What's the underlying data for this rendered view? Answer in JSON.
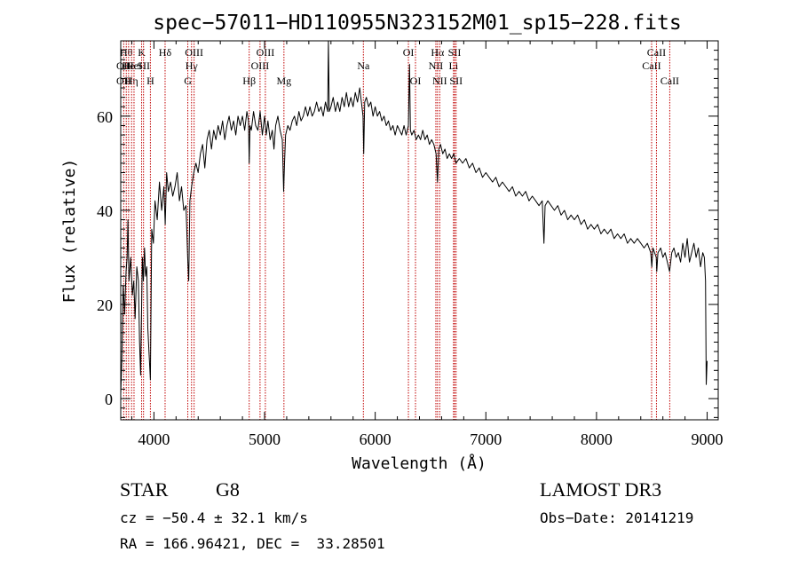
{
  "chart_data": {
    "type": "line",
    "title": "spec−57011−HD110955N323152M01_sp15−228.fits",
    "xlabel": "Wavelength (Å)",
    "ylabel": "Flux (relative)",
    "xlim": [
      3700,
      9100
    ],
    "ylim": [
      -4.5,
      76
    ],
    "x_ticks": [
      4000,
      5000,
      6000,
      7000,
      8000,
      9000
    ],
    "y_ticks": [
      0,
      20,
      40,
      60
    ],
    "grid": false,
    "line_color": "#000000",
    "marker_color": "#c00000",
    "series": [
      {
        "name": "flux",
        "points": [
          [
            3700,
            1
          ],
          [
            3710,
            8
          ],
          [
            3722,
            24
          ],
          [
            3735,
            18
          ],
          [
            3748,
            27
          ],
          [
            3758,
            30
          ],
          [
            3765,
            38
          ],
          [
            3775,
            25
          ],
          [
            3790,
            30
          ],
          [
            3805,
            22
          ],
          [
            3818,
            25
          ],
          [
            3830,
            17
          ],
          [
            3845,
            28
          ],
          [
            3860,
            25
          ],
          [
            3870,
            12
          ],
          [
            3880,
            5
          ],
          [
            3888,
            18
          ],
          [
            3896,
            30
          ],
          [
            3905,
            25
          ],
          [
            3915,
            32
          ],
          [
            3925,
            26
          ],
          [
            3935,
            28
          ],
          [
            3945,
            15
          ],
          [
            3955,
            10
          ],
          [
            3968,
            4
          ],
          [
            3980,
            36
          ],
          [
            3995,
            33
          ],
          [
            4010,
            42
          ],
          [
            4030,
            38
          ],
          [
            4050,
            46
          ],
          [
            4070,
            40
          ],
          [
            4090,
            45
          ],
          [
            4102,
            37
          ],
          [
            4115,
            48
          ],
          [
            4130,
            44
          ],
          [
            4150,
            46
          ],
          [
            4170,
            43
          ],
          [
            4190,
            45
          ],
          [
            4210,
            48
          ],
          [
            4230,
            42
          ],
          [
            4250,
            45
          ],
          [
            4270,
            40
          ],
          [
            4290,
            41
          ],
          [
            4305,
            30
          ],
          [
            4315,
            25
          ],
          [
            4325,
            42
          ],
          [
            4340,
            45
          ],
          [
            4360,
            48
          ],
          [
            4380,
            50
          ],
          [
            4400,
            48
          ],
          [
            4420,
            52
          ],
          [
            4440,
            54
          ],
          [
            4460,
            49
          ],
          [
            4480,
            55
          ],
          [
            4500,
            57
          ],
          [
            4520,
            53
          ],
          [
            4540,
            57
          ],
          [
            4560,
            55
          ],
          [
            4580,
            58
          ],
          [
            4600,
            56
          ],
          [
            4620,
            59
          ],
          [
            4640,
            55
          ],
          [
            4660,
            58
          ],
          [
            4680,
            60
          ],
          [
            4700,
            57
          ],
          [
            4720,
            59
          ],
          [
            4740,
            56
          ],
          [
            4760,
            60
          ],
          [
            4780,
            58
          ],
          [
            4800,
            60
          ],
          [
            4820,
            57
          ],
          [
            4840,
            61
          ],
          [
            4855,
            59
          ],
          [
            4861,
            50
          ],
          [
            4868,
            58
          ],
          [
            4880,
            57
          ],
          [
            4900,
            61
          ],
          [
            4920,
            58
          ],
          [
            4940,
            57
          ],
          [
            4960,
            61
          ],
          [
            4980,
            56
          ],
          [
            5000,
            60
          ],
          [
            5015,
            56
          ],
          [
            5030,
            59
          ],
          [
            5050,
            55
          ],
          [
            5070,
            57
          ],
          [
            5085,
            53
          ],
          [
            5100,
            58
          ],
          [
            5120,
            60
          ],
          [
            5140,
            57
          ],
          [
            5160,
            55
          ],
          [
            5172,
            44
          ],
          [
            5180,
            50
          ],
          [
            5190,
            56
          ],
          [
            5210,
            58
          ],
          [
            5230,
            57
          ],
          [
            5250,
            59
          ],
          [
            5270,
            60
          ],
          [
            5290,
            58
          ],
          [
            5310,
            61
          ],
          [
            5330,
            59
          ],
          [
            5350,
            60
          ],
          [
            5370,
            62
          ],
          [
            5390,
            60
          ],
          [
            5410,
            62
          ],
          [
            5430,
            60
          ],
          [
            5450,
            61
          ],
          [
            5470,
            63
          ],
          [
            5490,
            61
          ],
          [
            5510,
            62
          ],
          [
            5530,
            60
          ],
          [
            5550,
            63
          ],
          [
            5570,
            61
          ],
          [
            5577,
            76
          ],
          [
            5585,
            61
          ],
          [
            5600,
            62
          ],
          [
            5620,
            64
          ],
          [
            5640,
            61
          ],
          [
            5660,
            63
          ],
          [
            5680,
            61
          ],
          [
            5700,
            64
          ],
          [
            5720,
            62
          ],
          [
            5740,
            65
          ],
          [
            5760,
            62
          ],
          [
            5780,
            64
          ],
          [
            5800,
            62
          ],
          [
            5820,
            65
          ],
          [
            5840,
            63
          ],
          [
            5860,
            66
          ],
          [
            5880,
            62
          ],
          [
            5890,
            60
          ],
          [
            5896,
            52
          ],
          [
            5905,
            63
          ],
          [
            5920,
            64
          ],
          [
            5940,
            62
          ],
          [
            5960,
            63
          ],
          [
            5980,
            60
          ],
          [
            6000,
            62
          ],
          [
            6020,
            60
          ],
          [
            6040,
            61
          ],
          [
            6060,
            59
          ],
          [
            6080,
            60
          ],
          [
            6100,
            58
          ],
          [
            6120,
            59
          ],
          [
            6140,
            57
          ],
          [
            6160,
            58
          ],
          [
            6180,
            56
          ],
          [
            6200,
            58
          ],
          [
            6220,
            57
          ],
          [
            6240,
            56
          ],
          [
            6260,
            58
          ],
          [
            6280,
            56
          ],
          [
            6300,
            58
          ],
          [
            6310,
            71
          ],
          [
            6318,
            57
          ],
          [
            6330,
            56
          ],
          [
            6350,
            57
          ],
          [
            6370,
            55
          ],
          [
            6390,
            56
          ],
          [
            6410,
            55
          ],
          [
            6430,
            57
          ],
          [
            6450,
            55
          ],
          [
            6470,
            56
          ],
          [
            6490,
            54
          ],
          [
            6510,
            55
          ],
          [
            6530,
            54
          ],
          [
            6550,
            52
          ],
          [
            6563,
            46
          ],
          [
            6575,
            53
          ],
          [
            6590,
            54
          ],
          [
            6610,
            52
          ],
          [
            6630,
            53
          ],
          [
            6650,
            51
          ],
          [
            6670,
            52
          ],
          [
            6690,
            51
          ],
          [
            6710,
            52
          ],
          [
            6730,
            50
          ],
          [
            6760,
            51
          ],
          [
            6790,
            50
          ],
          [
            6820,
            51
          ],
          [
            6850,
            49
          ],
          [
            6880,
            50
          ],
          [
            6910,
            48
          ],
          [
            6940,
            49
          ],
          [
            6970,
            47
          ],
          [
            7000,
            48
          ],
          [
            7030,
            47
          ],
          [
            7060,
            46
          ],
          [
            7090,
            47
          ],
          [
            7120,
            45
          ],
          [
            7150,
            46
          ],
          [
            7180,
            45
          ],
          [
            7210,
            44
          ],
          [
            7240,
            45
          ],
          [
            7270,
            43
          ],
          [
            7300,
            44
          ],
          [
            7330,
            43
          ],
          [
            7360,
            44
          ],
          [
            7390,
            42
          ],
          [
            7420,
            43
          ],
          [
            7450,
            42
          ],
          [
            7480,
            41
          ],
          [
            7510,
            42
          ],
          [
            7525,
            33
          ],
          [
            7535,
            41
          ],
          [
            7560,
            42
          ],
          [
            7590,
            41
          ],
          [
            7620,
            40
          ],
          [
            7650,
            41
          ],
          [
            7680,
            39
          ],
          [
            7710,
            40
          ],
          [
            7740,
            38
          ],
          [
            7770,
            39
          ],
          [
            7800,
            38
          ],
          [
            7830,
            39
          ],
          [
            7860,
            37
          ],
          [
            7890,
            38
          ],
          [
            7920,
            36
          ],
          [
            7950,
            37
          ],
          [
            7980,
            36
          ],
          [
            8010,
            37
          ],
          [
            8040,
            35
          ],
          [
            8070,
            36
          ],
          [
            8100,
            35
          ],
          [
            8130,
            36
          ],
          [
            8160,
            34
          ],
          [
            8190,
            35
          ],
          [
            8220,
            34
          ],
          [
            8250,
            35
          ],
          [
            8280,
            33
          ],
          [
            8310,
            34
          ],
          [
            8340,
            33
          ],
          [
            8370,
            34
          ],
          [
            8400,
            33
          ],
          [
            8430,
            32
          ],
          [
            8460,
            33
          ],
          [
            8490,
            31
          ],
          [
            8500,
            28
          ],
          [
            8510,
            32
          ],
          [
            8540,
            30
          ],
          [
            8545,
            27
          ],
          [
            8555,
            31
          ],
          [
            8580,
            32
          ],
          [
            8600,
            30
          ],
          [
            8620,
            31
          ],
          [
            8640,
            29
          ],
          [
            8660,
            27
          ],
          [
            8680,
            31
          ],
          [
            8700,
            32
          ],
          [
            8720,
            30
          ],
          [
            8740,
            31
          ],
          [
            8760,
            29
          ],
          [
            8780,
            33
          ],
          [
            8800,
            30
          ],
          [
            8820,
            34
          ],
          [
            8840,
            29
          ],
          [
            8860,
            31
          ],
          [
            8880,
            33
          ],
          [
            8900,
            30
          ],
          [
            8920,
            32
          ],
          [
            8940,
            28
          ],
          [
            8960,
            31
          ],
          [
            8975,
            30
          ],
          [
            8985,
            25
          ],
          [
            8992,
            3
          ],
          [
            9000,
            8
          ]
        ]
      }
    ],
    "line_markers": [
      {
        "x": 3727,
        "labels": [
          "OII",
          "OII"
        ],
        "rows": [
          2,
          3
        ]
      },
      {
        "x": 3750,
        "labels": [
          "Hθ"
        ],
        "rows": [
          1
        ]
      },
      {
        "x": 3771,
        "labels": [
          "He"
        ],
        "rows": [
          2
        ]
      },
      {
        "x": 3798,
        "labels": [
          "Hη"
        ],
        "rows": [
          3
        ]
      },
      {
        "x": 3820,
        "labels": [
          "HeI"
        ],
        "rows": [
          2
        ]
      },
      {
        "x": 3889,
        "labels": [
          "K"
        ],
        "rows": [
          1
        ]
      },
      {
        "x": 3906,
        "labels": [
          "SII"
        ],
        "rows": [
          2
        ]
      },
      {
        "x": 3968,
        "labels": [
          "H"
        ],
        "rows": [
          3
        ]
      },
      {
        "x": 4101,
        "labels": [
          "Hδ"
        ],
        "rows": [
          1
        ]
      },
      {
        "x": 4306,
        "labels": [
          "G"
        ],
        "rows": [
          3
        ]
      },
      {
        "x": 4340,
        "labels": [
          "Hγ"
        ],
        "rows": [
          2
        ]
      },
      {
        "x": 4363,
        "labels": [
          "OIII"
        ],
        "rows": [
          1
        ]
      },
      {
        "x": 4861,
        "labels": [
          "Hβ"
        ],
        "rows": [
          3
        ]
      },
      {
        "x": 4959,
        "labels": [
          "OIII"
        ],
        "rows": [
          2
        ]
      },
      {
        "x": 5007,
        "labels": [
          "OIII"
        ],
        "rows": [
          1
        ]
      },
      {
        "x": 5175,
        "labels": [
          "Mg"
        ],
        "rows": [
          3
        ]
      },
      {
        "x": 5893,
        "labels": [
          "Na"
        ],
        "rows": [
          2
        ]
      },
      {
        "x": 6300,
        "labels": [
          "OI"
        ],
        "rows": [
          1
        ]
      },
      {
        "x": 6364,
        "labels": [
          "OI"
        ],
        "rows": [
          3
        ]
      },
      {
        "x": 6548,
        "labels": [
          "NII"
        ],
        "rows": [
          2
        ]
      },
      {
        "x": 6563,
        "labels": [
          "Hα"
        ],
        "rows": [
          1
        ]
      },
      {
        "x": 6583,
        "labels": [
          "NII"
        ],
        "rows": [
          3
        ]
      },
      {
        "x": 6708,
        "labels": [
          "Li"
        ],
        "rows": [
          2
        ]
      },
      {
        "x": 6717,
        "labels": [
          "SII"
        ],
        "rows": [
          1
        ]
      },
      {
        "x": 6731,
        "labels": [
          "SII"
        ],
        "rows": [
          3
        ]
      },
      {
        "x": 8498,
        "labels": [
          "CaII"
        ],
        "rows": [
          2
        ]
      },
      {
        "x": 8542,
        "labels": [
          "CaII"
        ],
        "rows": [
          1
        ]
      },
      {
        "x": 8662,
        "labels": [
          "CaII"
        ],
        "rows": [
          3
        ]
      }
    ]
  },
  "info": {
    "object_class": "STAR",
    "subclass": "G8",
    "survey": "LAMOST DR3",
    "redshift": "cz = −50.4 ± 32.1 km/s",
    "obs_date": "Obs−Date: 20141219",
    "coords": "RA = 166.96421, DEC =  33.28501"
  }
}
